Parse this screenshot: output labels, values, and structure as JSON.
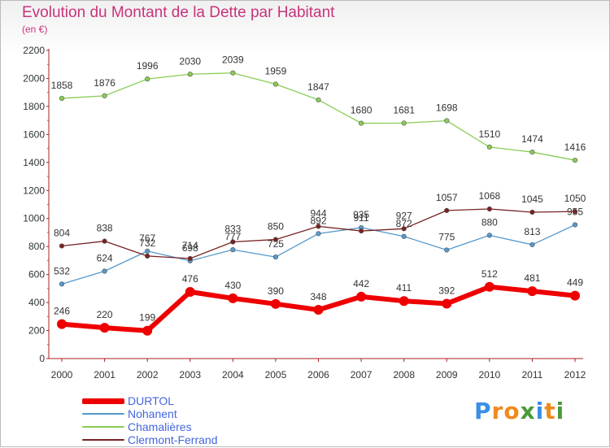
{
  "chart_data": {
    "type": "line",
    "title": "Evolution du Montant de la Dette par Habitant",
    "subtitle": "(en €)",
    "xlabel": "",
    "ylabel": "",
    "categories": [
      "2000",
      "2001",
      "2002",
      "2003",
      "2004",
      "2005",
      "2006",
      "2007",
      "2008",
      "2009",
      "2010",
      "2011",
      "2012"
    ],
    "ylim": [
      0,
      2200
    ],
    "yticks": [
      0,
      200,
      400,
      600,
      800,
      1000,
      1200,
      1400,
      1600,
      1800,
      2000,
      2200
    ],
    "grid": false,
    "legend_position": "bottom-left",
    "series": [
      {
        "name": "DURTOL",
        "color": "#ee0000",
        "values": [
          246,
          220,
          199,
          476,
          430,
          390,
          348,
          442,
          411,
          392,
          512,
          481,
          449
        ]
      },
      {
        "name": "Nohanent",
        "color": "#5599cc",
        "values": [
          532,
          624,
          767,
          698,
          777,
          725,
          892,
          935,
          872,
          775,
          880,
          813,
          955
        ]
      },
      {
        "name": "Chamalières",
        "color": "#88cc55",
        "values": [
          1858,
          1876,
          1996,
          2030,
          2039,
          1959,
          1847,
          1680,
          1681,
          1698,
          1510,
          1474,
          1416
        ]
      },
      {
        "name": "Clermont-Ferrand",
        "color": "#772222",
        "values": [
          804,
          838,
          732,
          714,
          833,
          850,
          944,
          911,
          927,
          1057,
          1068,
          1045,
          1050
        ]
      }
    ]
  },
  "logo": {
    "text": "Proxiti",
    "letters": [
      {
        "ch": "P",
        "color": "#3a8ee6"
      },
      {
        "ch": "r",
        "color": "#f08a1c"
      },
      {
        "ch": "o",
        "color": "#f08a1c"
      },
      {
        "ch": "x",
        "color": "#4a9a3a"
      },
      {
        "ch": "i",
        "color": "#3a8ee6"
      },
      {
        "ch": "t",
        "color": "#f08a1c"
      },
      {
        "ch": "i",
        "color": "#4a9a3a"
      }
    ]
  }
}
